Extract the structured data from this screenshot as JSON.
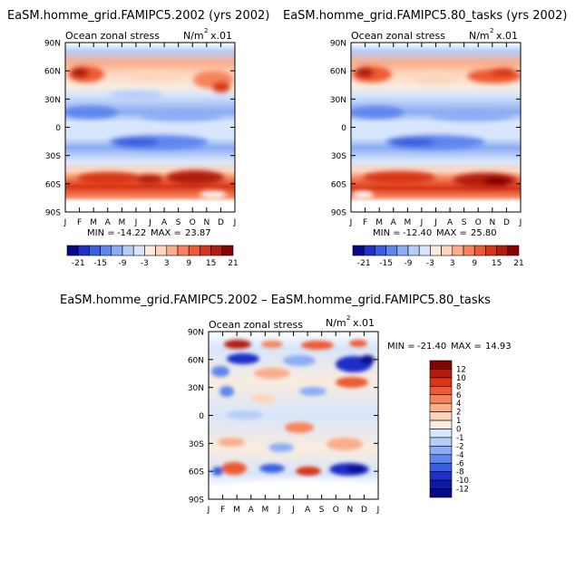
{
  "chart_data": [
    {
      "type": "heatmap",
      "id": "top-left",
      "title": "EaSM.homme_grid.FAMIPC5.2002 (yrs 2002)",
      "left_label": "Ocean zonal stress",
      "units": "N/m",
      "units_sup": "2",
      "units_scale": "x.01",
      "x_ticks": [
        "J",
        "F",
        "M",
        "A",
        "M",
        "J",
        "J",
        "A",
        "S",
        "O",
        "N",
        "D",
        "J"
      ],
      "y_ticks": [
        "90N",
        "60N",
        "30N",
        "0",
        "30S",
        "60S",
        "90S"
      ],
      "ylim": [
        -90,
        90
      ],
      "min_label": "MIN =",
      "min_value": "-14.22",
      "max_label": "MAX =",
      "max_value": "23.87",
      "colorbar_labels": [
        "-21",
        "-15",
        "-9",
        "-3",
        "3",
        "9",
        "15",
        "21"
      ],
      "colorbar_colors": [
        "#08088c",
        "#1f2fc7",
        "#3a5fe0",
        "#5f86ee",
        "#8cadf5",
        "#b6cdfa",
        "#d8e6fb",
        "#f9ecdf",
        "#fdd5bc",
        "#fbad8a",
        "#f7845c",
        "#ee5a32",
        "#d93418",
        "#b31b0c",
        "#850303"
      ]
    },
    {
      "type": "heatmap",
      "id": "top-right",
      "title": "EaSM.homme_grid.FAMIPC5.80_tasks (yrs 2002)",
      "left_label": "Ocean zonal stress",
      "units": "N/m",
      "units_sup": "2",
      "units_scale": "x.01",
      "x_ticks": [
        "J",
        "F",
        "M",
        "A",
        "M",
        "J",
        "J",
        "A",
        "S",
        "O",
        "N",
        "D",
        "J"
      ],
      "y_ticks": [
        "90N",
        "60N",
        "30N",
        "0",
        "30S",
        "60S",
        "90S"
      ],
      "ylim": [
        -90,
        90
      ],
      "min_label": "MIN =",
      "min_value": "-12.40",
      "max_label": "MAX =",
      "max_value": "25.80",
      "colorbar_labels": [
        "-21",
        "-15",
        "-9",
        "-3",
        "3",
        "9",
        "15",
        "21"
      ],
      "colorbar_colors": [
        "#08088c",
        "#1f2fc7",
        "#3a5fe0",
        "#5f86ee",
        "#8cadf5",
        "#b6cdfa",
        "#d8e6fb",
        "#f9ecdf",
        "#fdd5bc",
        "#fbad8a",
        "#f7845c",
        "#ee5a32",
        "#d93418",
        "#b31b0c",
        "#850303"
      ]
    },
    {
      "type": "heatmap",
      "id": "difference",
      "title": "EaSM.homme_grid.FAMIPC5.2002 – EaSM.homme_grid.FAMIPC5.80_tasks",
      "left_label": "Ocean zonal stress",
      "units": "N/m",
      "units_sup": "2",
      "units_scale": "x.01",
      "x_ticks": [
        "J",
        "F",
        "M",
        "A",
        "M",
        "J",
        "J",
        "A",
        "S",
        "O",
        "N",
        "D",
        "J"
      ],
      "y_ticks": [
        "90N",
        "60N",
        "30N",
        "0",
        "30S",
        "60S",
        "90S"
      ],
      "ylim": [
        -90,
        90
      ],
      "min_label": "MIN =",
      "min_value": "-21.40",
      "max_label": "MAX =",
      "max_value": "14.93",
      "colorbar_labels": [
        "12",
        "10",
        "8",
        "6",
        "4",
        "2",
        "1",
        "0",
        "-1",
        "-2",
        "-4",
        "-6",
        "-8",
        "-10",
        "-12"
      ],
      "colorbar_colors": [
        "#850303",
        "#b31b0c",
        "#d93418",
        "#ee5a32",
        "#f7845c",
        "#fbad8a",
        "#fdd5bc",
        "#f9ecdf",
        "#d8e6fb",
        "#b6cdfa",
        "#8cadf5",
        "#5f86ee",
        "#3a5fe0",
        "#1f2fc7",
        "#0c1aa8",
        "#08088c"
      ]
    }
  ]
}
